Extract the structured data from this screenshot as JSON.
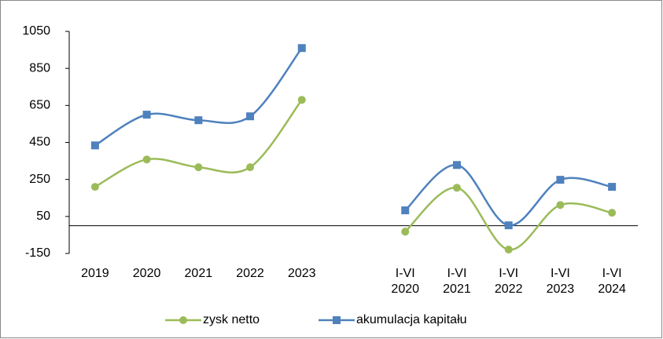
{
  "chart_data": {
    "type": "line",
    "categories": [
      "2019",
      "2020",
      "2021",
      "2022",
      "2023",
      null,
      "I-VI\n2020",
      "I-VI\n2021",
      "I-VI\n2022",
      "I-VI\n2023",
      "I-VI\n2024"
    ],
    "series": [
      {
        "name": "zysk netto",
        "color": "#9bbb59",
        "marker": "circle",
        "values": [
          210,
          358,
          316,
          316,
          680,
          null,
          -32,
          205,
          -129,
          112,
          70
        ]
      },
      {
        "name": "akumulacja kapitału",
        "color": "#4f81bd",
        "marker": "square",
        "values": [
          434,
          600,
          570,
          591,
          960,
          null,
          83,
          328,
          2,
          248,
          210
        ]
      }
    ],
    "ylim": [
      -150,
      1050
    ],
    "yticks": [
      -150,
      50,
      250,
      450,
      650,
      850,
      1050
    ],
    "smooth": true,
    "legend": "bottom"
  }
}
